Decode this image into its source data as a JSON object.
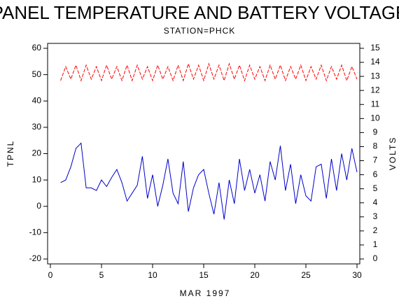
{
  "chart_data": {
    "type": "line",
    "title": "PANEL TEMPERATURE AND BATTERY VOLTAGE",
    "subtitle": "STATION=PHCK",
    "x_label": "MAR 1997",
    "y_label": "TPNL",
    "y2_label": "VOLTS",
    "x": [
      1,
      1.5,
      2,
      2.5,
      3,
      3.5,
      4,
      4.5,
      5,
      5.5,
      6,
      6.5,
      7,
      7.5,
      8,
      8.5,
      9,
      9.5,
      10,
      10.5,
      11,
      11.5,
      12,
      12.5,
      13,
      13.5,
      14,
      14.5,
      15,
      15.5,
      16,
      16.5,
      17,
      17.5,
      18,
      18.5,
      19,
      19.5,
      20,
      20.5,
      21,
      21.5,
      22,
      22.5,
      23,
      23.5,
      24,
      24.5,
      25,
      25.5,
      26,
      26.5,
      27,
      27.5,
      28,
      28.5,
      29,
      29.5,
      30
    ],
    "series": [
      {
        "name": "TPNL",
        "color": "#0000cc",
        "axis": "y",
        "values": [
          9,
          10,
          15,
          22,
          24,
          7,
          7,
          6,
          10,
          7.5,
          11,
          14,
          9,
          2,
          5,
          8,
          19,
          3,
          12,
          0,
          8,
          18,
          5,
          1,
          17,
          -2,
          7,
          12,
          14,
          5,
          -3,
          9,
          -5,
          10,
          1,
          18,
          6,
          14,
          5,
          12,
          2,
          17,
          10,
          23,
          6,
          16,
          1,
          12,
          4,
          2,
          15,
          16,
          3,
          18,
          6,
          20,
          10,
          22,
          13
        ]
      },
      {
        "name": "VOLTS",
        "color": "#ff0000",
        "axis": "y2",
        "values": [
          12.7,
          13.7,
          12.8,
          13.8,
          12.7,
          13.8,
          12.8,
          13.7,
          12.7,
          13.8,
          12.8,
          13.7,
          12.7,
          13.8,
          12.7,
          13.8,
          12.8,
          13.7,
          12.7,
          13.8,
          12.8,
          13.7,
          12.7,
          13.8,
          12.7,
          13.9,
          12.8,
          13.8,
          12.7,
          13.9,
          12.8,
          13.8,
          12.7,
          13.9,
          12.8,
          13.8,
          12.7,
          13.8,
          12.8,
          13.7,
          12.7,
          13.8,
          12.8,
          13.8,
          12.7,
          13.7,
          12.8,
          13.8,
          12.7,
          13.7,
          12.8,
          13.8,
          12.7,
          13.7,
          12.8,
          13.8,
          12.7,
          13.7,
          12.8
        ]
      }
    ],
    "xlim": [
      0,
      30
    ],
    "xticks": [
      0,
      5,
      10,
      15,
      20,
      25,
      30
    ],
    "ylim": [
      -20,
      60
    ],
    "yticks": [
      -20,
      -10,
      0,
      10,
      20,
      30,
      40,
      50,
      60
    ],
    "y2lim": [
      0,
      15
    ],
    "y2ticks": [
      0,
      1,
      2,
      3,
      4,
      5,
      6,
      7,
      8,
      9,
      10,
      11,
      12,
      13,
      14,
      15
    ]
  }
}
